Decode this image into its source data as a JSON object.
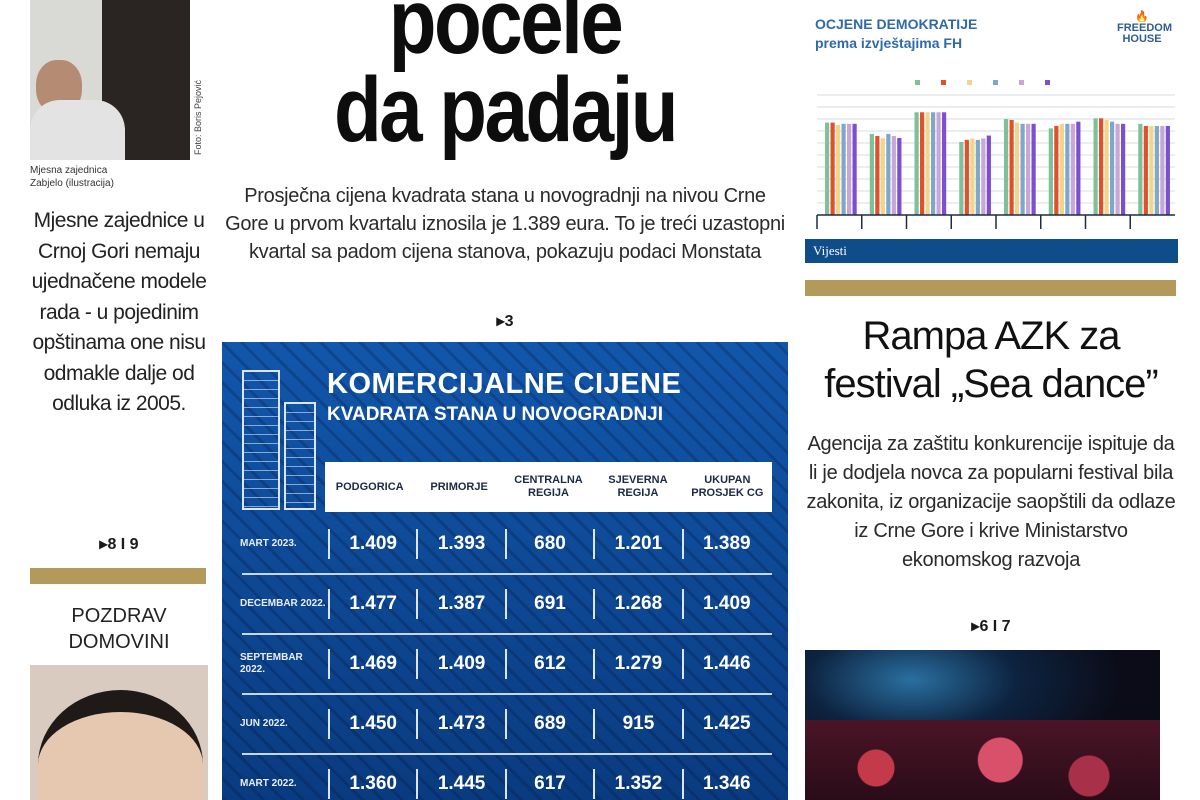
{
  "left": {
    "photo_caption": "Mjesna zajednica Zabjelo (ilustracija)",
    "photo_credit": "Foto: Boris Pejović",
    "story_text": "Mjesne zajednice u Crnoj Gori nemaju ujednačene modele rada - u pojedinim opštinama one nisu odmakle dalje od odluka iz 2005.",
    "page_ref": "8 I 9",
    "section_title": "POZDRAV DOMOVINI"
  },
  "main": {
    "headline_line1": "počele",
    "headline_line2": "da padaju",
    "lead": "Prosječna cijena kvadrata stana u novogradnji na nivou Crne Gore u prvom kvartalu iznosila je 1.389 eura. To je treći uzastopni kvartal sa padom cijena stanova, pokazuju podaci Monstata",
    "page_ref": "3",
    "infographic": {
      "title_line1": "KOMERCIJALNE CIJENE",
      "title_line2": "KVADRATA STANA U NOVOGRADNJI",
      "columns": [
        "PODGORICA",
        "PRIMORJE",
        "CENTRALNA REGIJA",
        "SJEVERNA REGIJA",
        "UKUPAN PROSJEK CG"
      ],
      "rows": [
        {
          "period": "MART 2023.",
          "values": [
            "1.409",
            "1.393",
            "680",
            "1.201",
            "1.389"
          ]
        },
        {
          "period": "DECEMBAR 2022.",
          "values": [
            "1.477",
            "1.387",
            "691",
            "1.268",
            "1.409"
          ]
        },
        {
          "period": "SEPTEMBAR 2022.",
          "values": [
            "1.469",
            "1.409",
            "612",
            "1.279",
            "1.446"
          ]
        },
        {
          "period": "JUN 2022.",
          "values": [
            "1.450",
            "1.473",
            "689",
            "915",
            "1.425"
          ]
        },
        {
          "period": "MART 2022.",
          "values": [
            "1.360",
            "1.445",
            "617",
            "1.352",
            "1.346"
          ]
        }
      ]
    }
  },
  "right": {
    "chart_title_line1": "OCJENE DEMOKRATIJE",
    "chart_title_line2": "prema izvještajima FH",
    "logo_text": "FREEDOM HOUSE",
    "brand_band": "Vijesti",
    "headline_line1": "Rampa AZK za",
    "headline_line2": "festival „Sea dance”",
    "lead": "Agencija za zaštitu konkurencije ispituje da li je dodjela novca za popularni festival bila zakonita, iz organizacije saopštili da odlaze iz Crne Gore i krive Ministarstvo ekonomskog razvoja",
    "page_ref": "6 I 7"
  },
  "colors": {
    "gold": "#b39a5a",
    "infographic_blue": "#0d4a9a",
    "chart_title": "#2f6aa8",
    "band": "#0f4c8a"
  },
  "chart_data": {
    "type": "bar",
    "title": "OCJENE DEMOKRATIJE prema izvještajima FH",
    "ylim": [
      0,
      5
    ],
    "grid": true,
    "legend_position": "top",
    "series_colors": [
      "#7fbf9a",
      "#e0502a",
      "#f2d58a",
      "#7fa6cc",
      "#c9a6d8",
      "#7b4fd0"
    ],
    "groups": [
      [
        3.85,
        3.85,
        3.75,
        3.8,
        3.8,
        3.8
      ],
      [
        3.38,
        3.29,
        3.2,
        3.38,
        3.29,
        3.21
      ],
      [
        4.28,
        4.28,
        4.28,
        4.28,
        4.28,
        4.28
      ],
      [
        3.04,
        3.13,
        3.19,
        3.13,
        3.19,
        3.31
      ],
      [
        4.0,
        3.96,
        3.85,
        3.8,
        3.8,
        3.8
      ],
      [
        3.61,
        3.71,
        3.8,
        3.8,
        3.8,
        3.89
      ],
      [
        4.03,
        4.03,
        3.96,
        3.89,
        3.8,
        3.8
      ],
      [
        3.8,
        3.71,
        3.71,
        3.71,
        3.71,
        3.71
      ]
    ]
  }
}
